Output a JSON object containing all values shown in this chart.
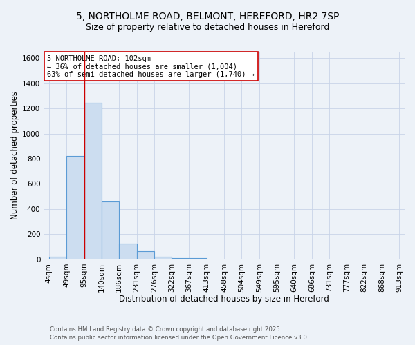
{
  "title1": "5, NORTHOLME ROAD, BELMONT, HEREFORD, HR2 7SP",
  "title2": "Size of property relative to detached houses in Hereford",
  "xlabel": "Distribution of detached houses by size in Hereford",
  "ylabel": "Number of detached properties",
  "bar_values": [
    20,
    820,
    1245,
    460,
    125,
    65,
    22,
    8,
    8,
    0,
    0,
    0,
    0,
    0,
    0,
    0,
    0,
    0,
    0,
    0
  ],
  "categories": [
    "4sqm",
    "49sqm",
    "95sqm",
    "140sqm",
    "186sqm",
    "231sqm",
    "276sqm",
    "322sqm",
    "367sqm",
    "413sqm",
    "458sqm",
    "504sqm",
    "549sqm",
    "595sqm",
    "640sqm",
    "686sqm",
    "731sqm",
    "777sqm",
    "822sqm",
    "868sqm",
    "913sqm"
  ],
  "bar_color": "#ccddf0",
  "bar_edge_color": "#5b9bd5",
  "vline_color": "#cc0000",
  "ylim": [
    0,
    1650
  ],
  "yticks": [
    0,
    200,
    400,
    600,
    800,
    1000,
    1200,
    1400,
    1600
  ],
  "annotation_line1": "5 NORTHOLME ROAD: 102sqm",
  "annotation_line2": "← 36% of detached houses are smaller (1,004)",
  "annotation_line3": "63% of semi-detached houses are larger (1,740) →",
  "annotation_box_color": "#ffffff",
  "annotation_box_edge": "#cc0000",
  "grid_color": "#c8d4e8",
  "background_color": "#edf2f8",
  "footer1": "Contains HM Land Registry data © Crown copyright and database right 2025.",
  "footer2": "Contains public sector information licensed under the Open Government Licence v3.0.",
  "title_fontsize": 10,
  "subtitle_fontsize": 9,
  "axis_label_fontsize": 8.5,
  "tick_fontsize": 7.5,
  "annot_fontsize": 7.5
}
